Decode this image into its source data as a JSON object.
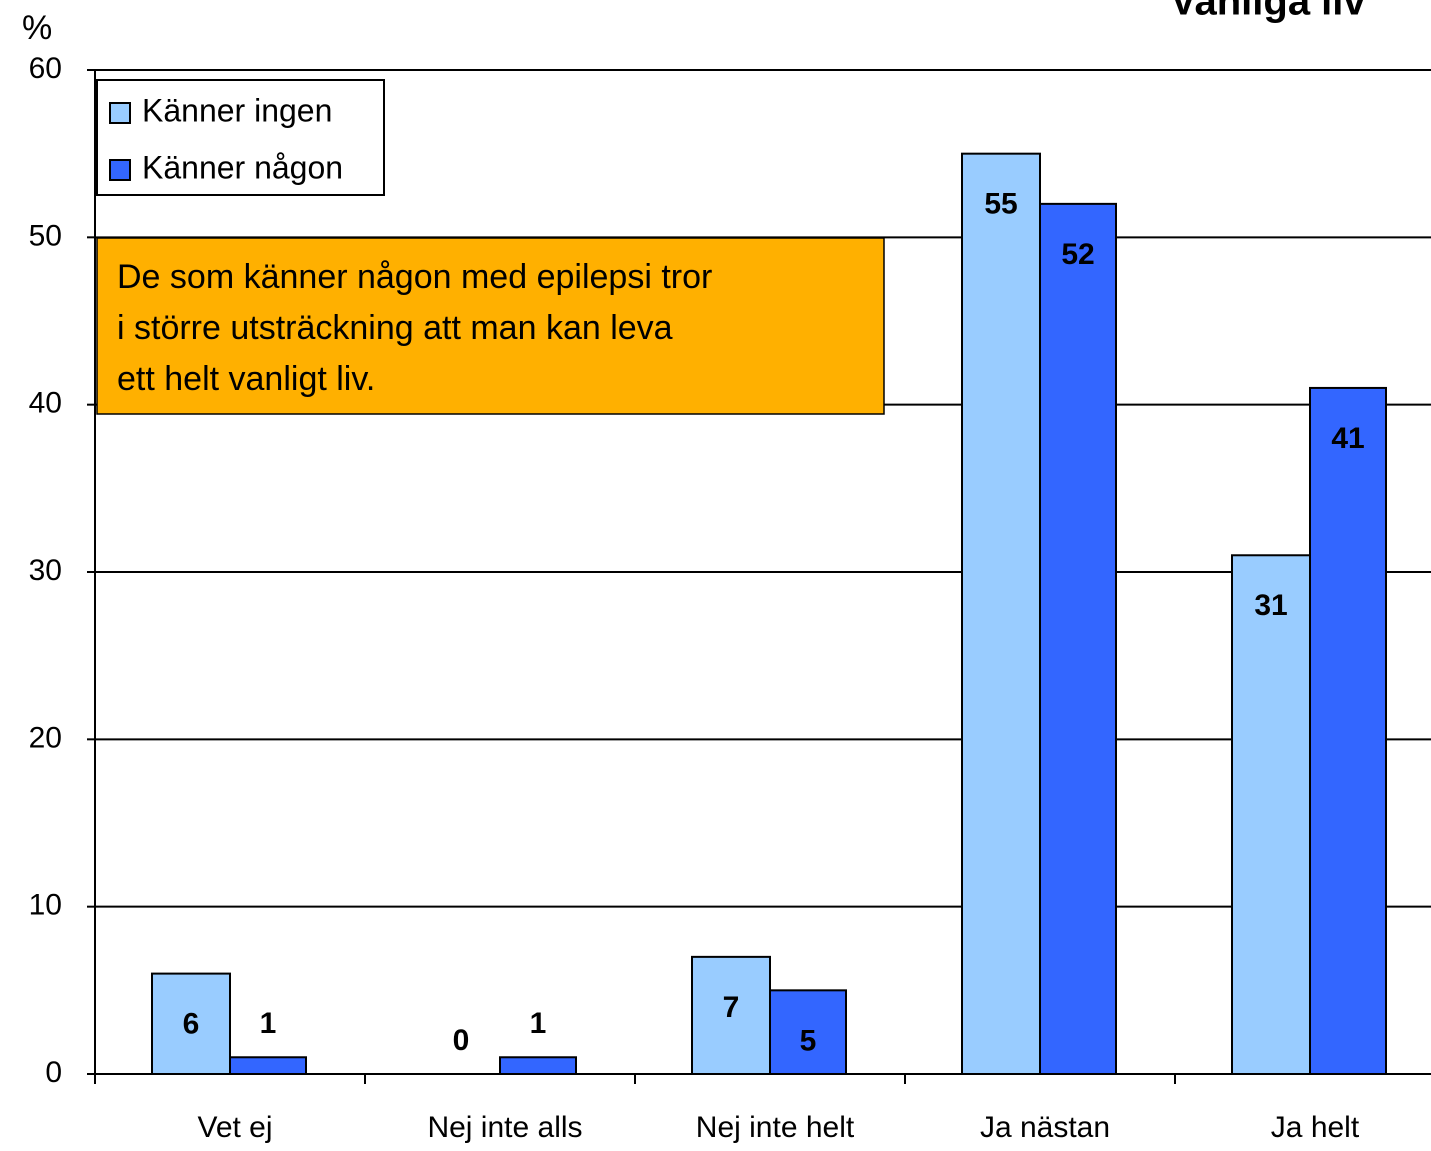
{
  "chart_data": {
    "type": "bar",
    "title": "Vanliga liv",
    "y_label": "%",
    "annotation": [
      "De som känner någon med epilepsi tror",
      "i större utsträckning att man kan leva",
      "ett helt vanligt liv."
    ],
    "categories": [
      "Vet ej",
      "Nej inte alls",
      "Nej inte helt",
      "Ja nästan",
      "Ja helt"
    ],
    "series": [
      {
        "name": "Känner ingen",
        "color": "#99ccff",
        "values": [
          6,
          0,
          7,
          55,
          31
        ]
      },
      {
        "name": "Känner någon",
        "color": "#3366ff",
        "values": [
          1,
          1,
          5,
          52,
          41
        ]
      }
    ],
    "ylim": [
      0,
      60
    ],
    "yticks": [
      0,
      10,
      20,
      30,
      40,
      50,
      60
    ],
    "grid": true,
    "legend": "top-left"
  }
}
